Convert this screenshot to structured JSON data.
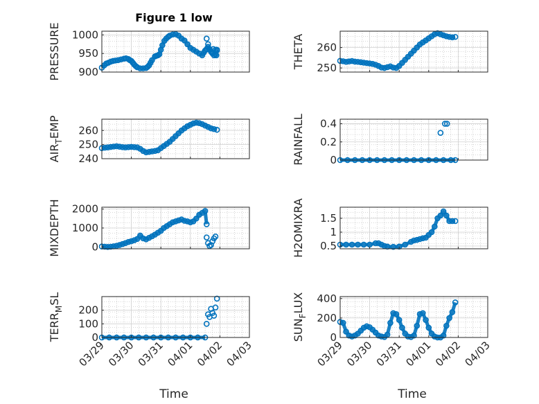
{
  "figure": {
    "title": "Figure 1 low",
    "x_tick_labels": [
      "03/29",
      "03/30",
      "03/31",
      "04/01",
      "04/02",
      "04/03"
    ],
    "x_axis_label": "Time",
    "marker_color": "#0072BD",
    "grid_color": "#b0b0b0"
  },
  "chart_data": [
    {
      "type": "scatter",
      "ylabel": "PRESSURE",
      "ylim": [
        900,
        1010
      ],
      "yticks": [
        900,
        950,
        1000
      ],
      "xlim": [
        0,
        5
      ],
      "x_unit": "days since 03/29",
      "x": [
        0.0,
        0.08,
        0.15,
        0.22,
        0.3,
        0.38,
        0.46,
        0.55,
        0.65,
        0.75,
        0.82,
        0.9,
        0.95,
        1.0,
        1.05,
        1.1,
        1.15,
        1.2,
        1.3,
        1.4,
        1.5,
        1.55,
        1.6,
        1.65,
        1.7,
        1.8,
        1.85,
        1.9,
        1.95,
        2.0,
        2.05,
        2.12,
        2.18,
        2.25,
        2.3,
        2.4,
        2.5,
        2.6,
        2.7,
        2.8,
        2.9,
        3.0,
        3.1,
        3.2,
        3.3,
        3.4,
        3.45,
        3.5,
        3.55,
        3.6,
        3.65,
        3.7,
        3.75,
        3.8,
        3.85,
        3.88,
        3.9
      ],
      "y": [
        912,
        918,
        923,
        925,
        928,
        930,
        931,
        932,
        934,
        936,
        937,
        935,
        932,
        930,
        925,
        920,
        916,
        913,
        910,
        910,
        911,
        914,
        918,
        925,
        932,
        942,
        944,
        945,
        948,
        960,
        972,
        984,
        990,
        995,
        998,
        1001,
        1002,
        998,
        990,
        985,
        975,
        965,
        960,
        955,
        950,
        945,
        952,
        958,
        962,
        968,
        962,
        955,
        950,
        945,
        960,
        945,
        960
      ],
      "outliers_x": [
        3.55,
        3.6,
        3.65,
        3.72,
        3.78,
        3.85,
        3.9
      ],
      "outliers_y": [
        990,
        975,
        960,
        953,
        962,
        948,
        958
      ]
    },
    {
      "type": "scatter",
      "ylabel": "THETA",
      "ylim": [
        248,
        268
      ],
      "yticks": [
        250,
        260
      ],
      "xlim": [
        0,
        5
      ],
      "x": [
        0.0,
        0.1,
        0.2,
        0.3,
        0.4,
        0.5,
        0.6,
        0.7,
        0.8,
        0.9,
        1.0,
        1.1,
        1.2,
        1.3,
        1.4,
        1.5,
        1.6,
        1.7,
        1.8,
        1.9,
        2.0,
        2.1,
        2.2,
        2.3,
        2.4,
        2.5,
        2.6,
        2.7,
        2.8,
        2.9,
        3.0,
        3.1,
        3.2,
        3.3,
        3.4,
        3.5,
        3.6,
        3.7,
        3.8,
        3.9
      ],
      "y": [
        253.5,
        253.3,
        253.0,
        253.2,
        253.4,
        253.1,
        253.0,
        252.8,
        252.6,
        252.4,
        252.2,
        252.0,
        251.6,
        251.0,
        250.2,
        250.0,
        250.4,
        250.8,
        250.2,
        250.0,
        251.0,
        252.5,
        254.0,
        255.5,
        257.0,
        258.5,
        260.0,
        261.5,
        262.5,
        263.5,
        264.5,
        265.5,
        266.5,
        267.0,
        266.5,
        266.0,
        265.5,
        265.2,
        265.0,
        265.2
      ]
    },
    {
      "type": "scatter",
      "ylabel": "AIR_TEMP",
      "ylim": [
        240,
        268
      ],
      "yticks": [
        240,
        250,
        260
      ],
      "xlim": [
        0,
        5
      ],
      "x": [
        0.0,
        0.1,
        0.2,
        0.3,
        0.4,
        0.5,
        0.6,
        0.7,
        0.8,
        0.9,
        1.0,
        1.1,
        1.2,
        1.3,
        1.4,
        1.5,
        1.6,
        1.7,
        1.8,
        1.9,
        2.0,
        2.1,
        2.2,
        2.3,
        2.4,
        2.5,
        2.6,
        2.7,
        2.8,
        2.9,
        3.0,
        3.1,
        3.2,
        3.3,
        3.4,
        3.5,
        3.6,
        3.7,
        3.8,
        3.9
      ],
      "y": [
        247.5,
        247.8,
        248.0,
        248.3,
        248.6,
        248.8,
        248.5,
        248.2,
        248.0,
        248.2,
        248.4,
        248.2,
        248.0,
        247.0,
        245.5,
        244.5,
        244.8,
        245.2,
        245.5,
        246.0,
        247.5,
        249.0,
        250.5,
        252.0,
        254.0,
        256.0,
        258.0,
        260.0,
        261.5,
        263.0,
        264.0,
        265.0,
        265.5,
        265.2,
        264.5,
        263.5,
        262.5,
        261.5,
        261.0,
        260.5
      ]
    },
    {
      "type": "scatter",
      "ylabel": "RAINFALL",
      "ylim": [
        0,
        0.45
      ],
      "yticks": [
        0,
        0.2,
        0.4
      ],
      "xlim": [
        0,
        5
      ],
      "x": [
        0.0,
        0.25,
        0.5,
        0.75,
        1.0,
        1.25,
        1.5,
        1.75,
        2.0,
        2.25,
        2.5,
        2.75,
        3.0,
        3.25,
        3.5,
        3.75,
        3.9
      ],
      "y": [
        0,
        0,
        0,
        0,
        0,
        0,
        0,
        0,
        0,
        0,
        0,
        0,
        0,
        0,
        0,
        0,
        0
      ],
      "outliers_x": [
        3.4,
        3.55,
        3.62
      ],
      "outliers_y": [
        0.3,
        0.4,
        0.4
      ]
    },
    {
      "type": "scatter",
      "ylabel": "MIXDEPTH",
      "ylim": [
        -100,
        2100
      ],
      "yticks": [
        0,
        1000,
        2000
      ],
      "xlim": [
        0,
        5
      ],
      "x": [
        0.0,
        0.1,
        0.2,
        0.3,
        0.4,
        0.5,
        0.6,
        0.7,
        0.8,
        0.9,
        1.0,
        1.1,
        1.2,
        1.3,
        1.4,
        1.5,
        1.6,
        1.7,
        1.8,
        1.9,
        2.0,
        2.1,
        2.2,
        2.3,
        2.4,
        2.5,
        2.6,
        2.7,
        2.8,
        2.9,
        3.0,
        3.1,
        3.2,
        3.3,
        3.4,
        3.5,
        3.55
      ],
      "y": [
        20,
        10,
        0,
        10,
        30,
        60,
        100,
        150,
        200,
        260,
        300,
        350,
        420,
        600,
        450,
        400,
        480,
        560,
        650,
        750,
        850,
        1000,
        1100,
        1200,
        1300,
        1350,
        1400,
        1450,
        1380,
        1350,
        1300,
        1350,
        1500,
        1700,
        1800,
        1900,
        1200
      ],
      "outliers_x": [
        3.55,
        3.6,
        3.65,
        3.7,
        3.75,
        3.8,
        3.85
      ],
      "outliers_y": [
        500,
        200,
        50,
        100,
        300,
        450,
        550
      ]
    },
    {
      "type": "scatter",
      "ylabel": "H2OMIXRA",
      "ylim": [
        0.4,
        1.9
      ],
      "yticks": [
        0.5,
        1,
        1.5
      ],
      "xlim": [
        0,
        5
      ],
      "x": [
        0.0,
        0.2,
        0.4,
        0.6,
        0.8,
        1.0,
        1.2,
        1.3,
        1.4,
        1.5,
        1.6,
        1.8,
        2.0,
        2.2,
        2.4,
        2.5,
        2.6,
        2.7,
        2.8,
        2.9,
        3.0,
        3.1,
        3.2,
        3.3,
        3.4,
        3.5,
        3.6,
        3.7,
        3.8,
        3.9
      ],
      "y": [
        0.55,
        0.55,
        0.55,
        0.55,
        0.55,
        0.55,
        0.6,
        0.6,
        0.55,
        0.5,
        0.48,
        0.47,
        0.48,
        0.55,
        0.65,
        0.7,
        0.72,
        0.75,
        0.78,
        0.8,
        0.9,
        1.0,
        1.2,
        1.5,
        1.6,
        1.75,
        1.6,
        1.4,
        1.4,
        1.4
      ]
    },
    {
      "type": "scatter",
      "ylabel": "TERR_MSL",
      "ylim": [
        0,
        300
      ],
      "yticks": [
        0,
        100,
        200
      ],
      "xlim": [
        0,
        5
      ],
      "x": [
        0.0,
        0.25,
        0.5,
        0.75,
        1.0,
        1.25,
        1.5,
        1.75,
        2.0,
        2.25,
        2.5,
        2.75,
        3.0,
        3.25,
        3.5
      ],
      "y": [
        0,
        0,
        0,
        0,
        0,
        0,
        0,
        0,
        0,
        0,
        0,
        0,
        0,
        0,
        0
      ],
      "outliers_x": [
        3.55,
        3.6,
        3.65,
        3.7,
        3.75,
        3.8,
        3.85,
        3.9
      ],
      "outliers_y": [
        100,
        170,
        150,
        210,
        180,
        160,
        220,
        285
      ]
    },
    {
      "type": "scatter",
      "ylabel": "SUN_FLUX",
      "ylim": [
        0,
        420
      ],
      "yticks": [
        0,
        200,
        400
      ],
      "xlim": [
        0,
        5
      ],
      "x": [
        0.0,
        0.1,
        0.2,
        0.3,
        0.4,
        0.5,
        0.6,
        0.7,
        0.8,
        0.9,
        1.0,
        1.1,
        1.2,
        1.3,
        1.4,
        1.5,
        1.6,
        1.7,
        1.8,
        1.9,
        2.0,
        2.1,
        2.2,
        2.3,
        2.4,
        2.5,
        2.6,
        2.7,
        2.8,
        2.9,
        3.0,
        3.1,
        3.2,
        3.3,
        3.4,
        3.5,
        3.6,
        3.7,
        3.8,
        3.9
      ],
      "y": [
        160,
        150,
        60,
        20,
        10,
        20,
        40,
        70,
        100,
        115,
        105,
        80,
        50,
        20,
        10,
        5,
        30,
        150,
        250,
        240,
        180,
        100,
        40,
        10,
        5,
        20,
        120,
        240,
        250,
        180,
        100,
        40,
        10,
        0,
        0,
        20,
        120,
        200,
        260,
        360
      ]
    }
  ]
}
